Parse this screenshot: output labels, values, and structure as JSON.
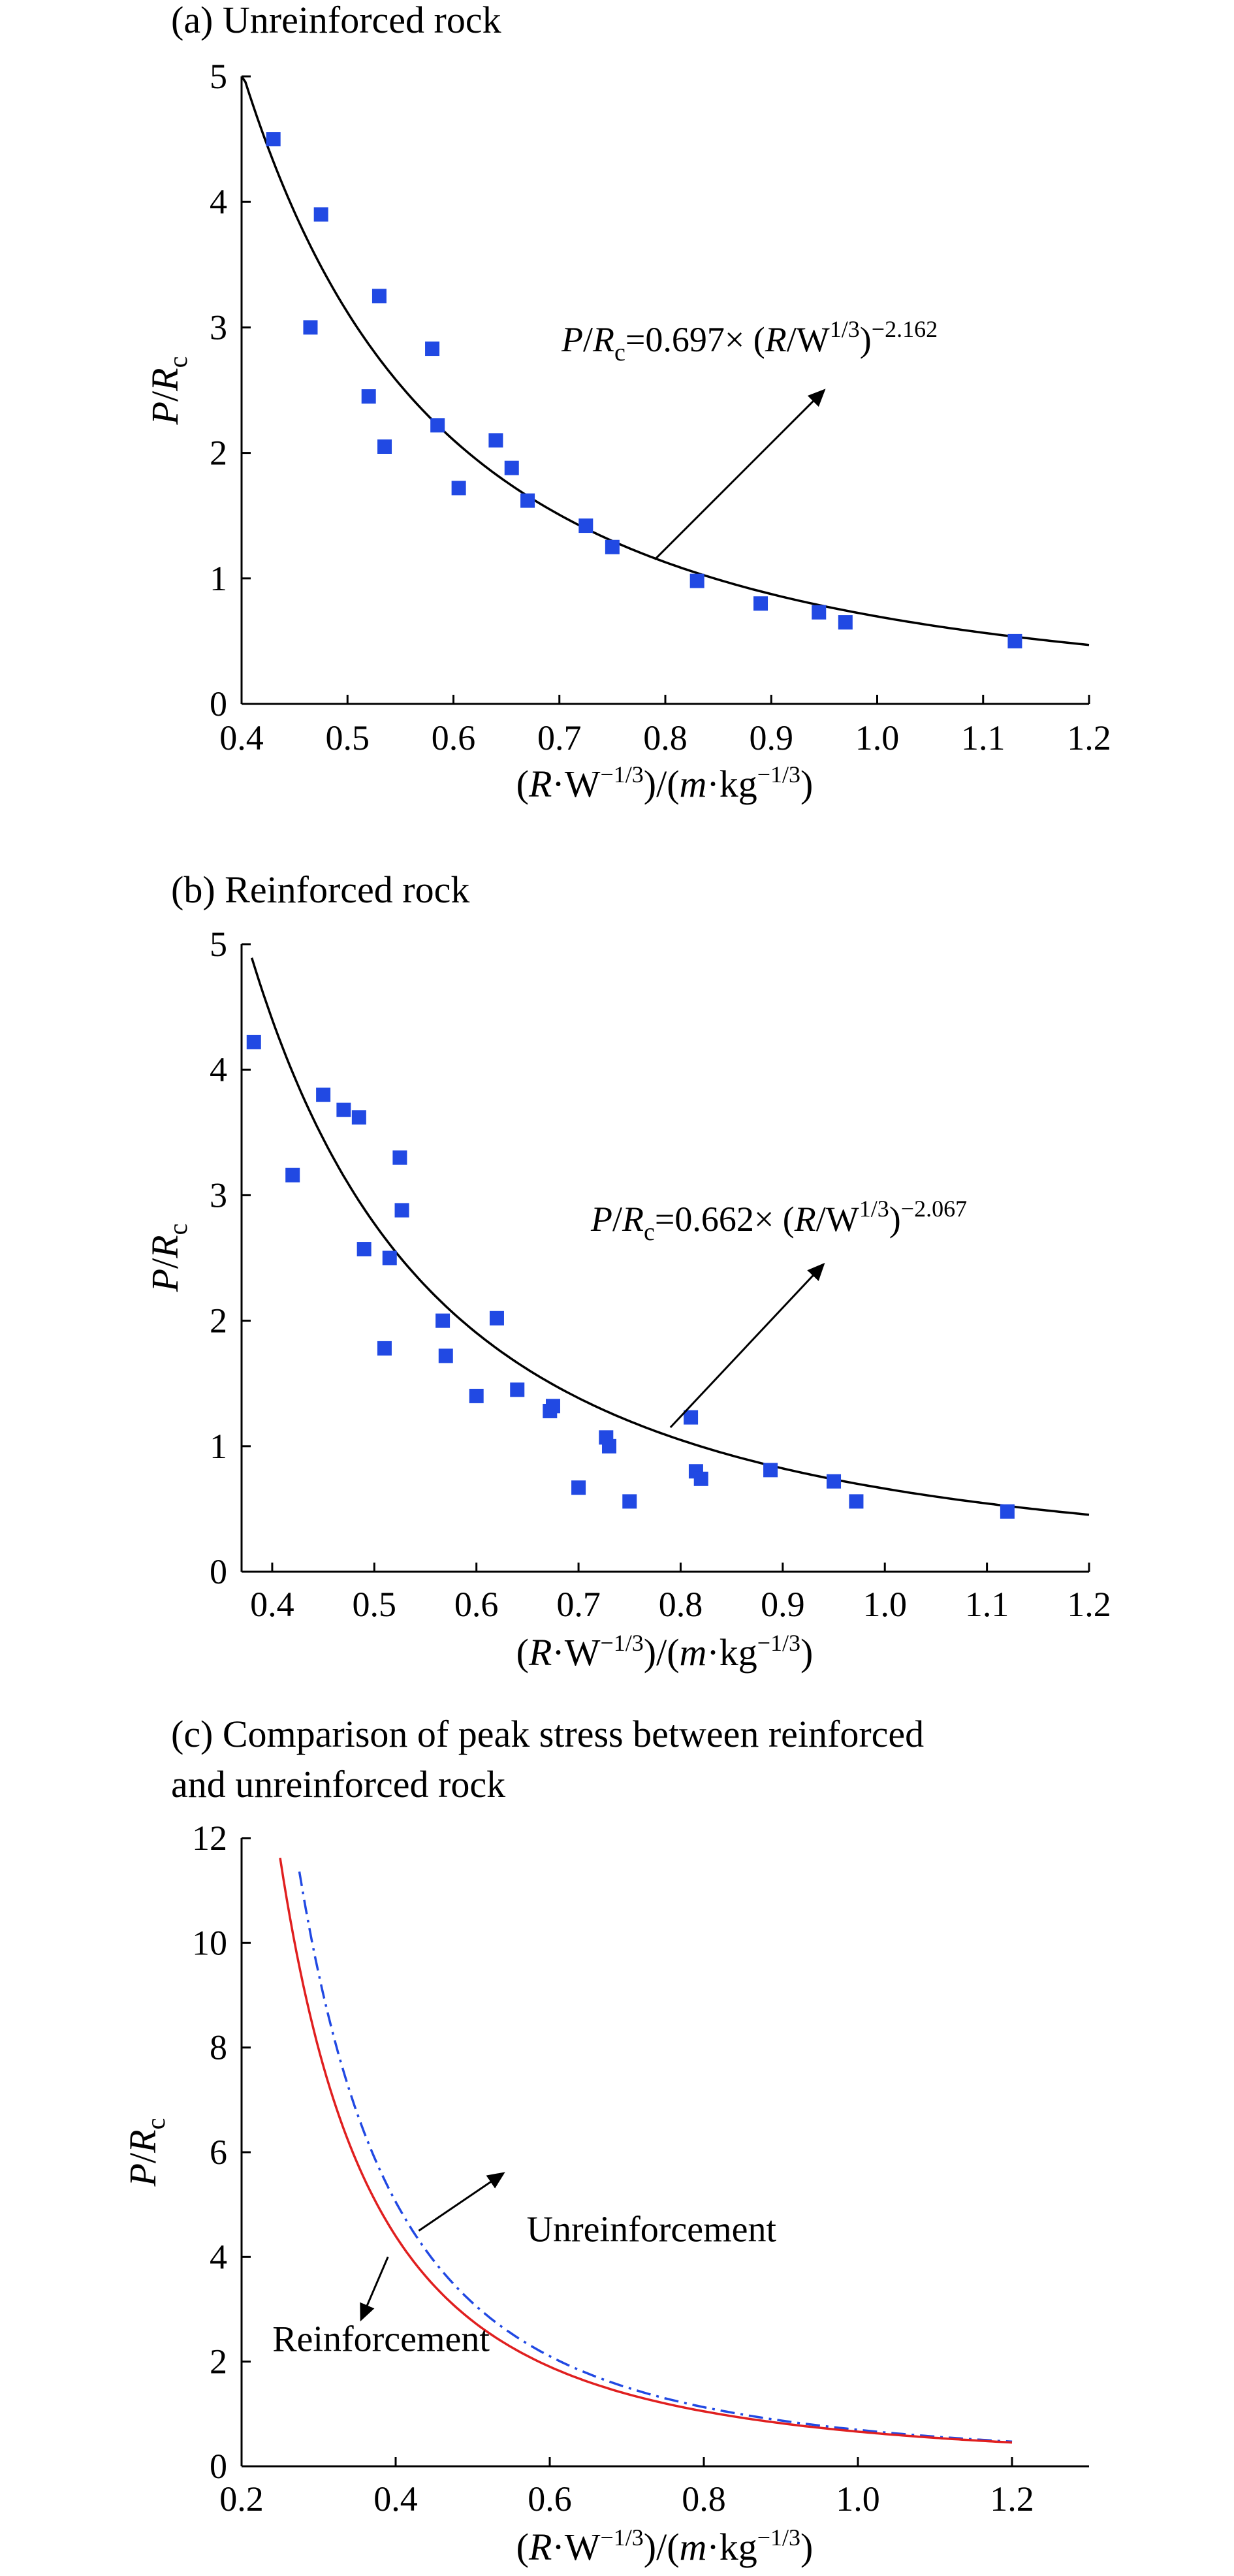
{
  "chart_data": [
    {
      "type": "scatter",
      "title": "(a) Unreinforced rock",
      "xlabel_parts": [
        "(",
        "R",
        "·W",
        "−1/3",
        ")/(",
        "m",
        "·kg",
        "−1/3",
        ")"
      ],
      "ylabel_parts": [
        "P",
        "/",
        "R",
        "c"
      ],
      "xlim": [
        0.4,
        1.2
      ],
      "ylim": [
        0,
        5
      ],
      "xticks": [
        "0.4",
        "0.5",
        "0.6",
        "0.7",
        "0.8",
        "0.9",
        "1.0",
        "1.1",
        "1.2"
      ],
      "yticks": [
        "0",
        "1",
        "2",
        "3",
        "4",
        "5"
      ],
      "series": [
        {
          "kind": "scatter",
          "color": "#2149e3",
          "points": [
            [
              0.43,
              4.5
            ],
            [
              0.465,
              3.0
            ],
            [
              0.475,
              3.9
            ],
            [
              0.52,
              2.45
            ],
            [
              0.53,
              3.25
            ],
            [
              0.535,
              2.05
            ],
            [
              0.58,
              2.83
            ],
            [
              0.585,
              2.22
            ],
            [
              0.605,
              1.72
            ],
            [
              0.64,
              2.1
            ],
            [
              0.655,
              1.88
            ],
            [
              0.67,
              1.62
            ],
            [
              0.725,
              1.42
            ],
            [
              0.75,
              1.25
            ],
            [
              0.83,
              0.98
            ],
            [
              0.89,
              0.8
            ],
            [
              0.945,
              0.73
            ],
            [
              0.97,
              0.65
            ],
            [
              1.13,
              0.5
            ]
          ]
        },
        {
          "kind": "fit",
          "color": "#000000",
          "coef": 0.697,
          "exponent": -2.162,
          "x_range": [
            0.4,
            1.2
          ]
        }
      ],
      "annotation": {
        "parts": [
          "P",
          "/",
          "R",
          "c",
          "=0.697× (",
          "R",
          "/W",
          "1/3",
          ")",
          "−2.162"
        ],
        "arrow_from": [
          0.79,
          1.15
        ],
        "arrow_to": [
          0.95,
          2.5
        ]
      }
    },
    {
      "type": "scatter",
      "title": "(b) Reinforced rock",
      "xlabel_parts": [
        "(",
        "R",
        "·W",
        "−1/3",
        ")/(",
        "m",
        "·kg",
        "−1/3",
        ")"
      ],
      "ylabel_parts": [
        "P",
        "/",
        "R",
        "c"
      ],
      "xlim": [
        0.37,
        1.2
      ],
      "ylim": [
        0,
        5
      ],
      "xticks": [
        "0.4",
        "0.5",
        "0.6",
        "0.7",
        "0.8",
        "0.9",
        "1.0",
        "1.1",
        "1.2"
      ],
      "yticks": [
        "0",
        "1",
        "2",
        "3",
        "4",
        "5"
      ],
      "series": [
        {
          "kind": "scatter",
          "color": "#2149e3",
          "points": [
            [
              0.382,
              4.22
            ],
            [
              0.42,
              3.16
            ],
            [
              0.45,
              3.8
            ],
            [
              0.47,
              3.68
            ],
            [
              0.485,
              3.62
            ],
            [
              0.49,
              2.57
            ],
            [
              0.51,
              1.78
            ],
            [
              0.515,
              2.5
            ],
            [
              0.525,
              3.3
            ],
            [
              0.527,
              2.88
            ],
            [
              0.567,
              2.0
            ],
            [
              0.57,
              1.72
            ],
            [
              0.6,
              1.4
            ],
            [
              0.62,
              2.02
            ],
            [
              0.64,
              1.45
            ],
            [
              0.672,
              1.28
            ],
            [
              0.675,
              1.32
            ],
            [
              0.7,
              0.67
            ],
            [
              0.727,
              1.07
            ],
            [
              0.73,
              1.0
            ],
            [
              0.75,
              0.56
            ],
            [
              0.81,
              1.23
            ],
            [
              0.815,
              0.8
            ],
            [
              0.82,
              0.74
            ],
            [
              0.888,
              0.81
            ],
            [
              0.95,
              0.72
            ],
            [
              0.972,
              0.56
            ],
            [
              1.12,
              0.48
            ]
          ]
        },
        {
          "kind": "fit",
          "color": "#000000",
          "coef": 0.662,
          "exponent": -2.067,
          "x_range": [
            0.38,
            1.2
          ]
        }
      ],
      "annotation": {
        "parts": [
          "P",
          "/",
          "R",
          "c",
          "=0.662× (",
          "R",
          "/W",
          "1/3",
          ")",
          "−2.067"
        ],
        "arrow_from": [
          0.79,
          1.15
        ],
        "arrow_to": [
          0.94,
          2.45
        ]
      }
    },
    {
      "type": "line",
      "title_lines": [
        "(c) Comparison of peak stress between reinforced",
        "and unreinforced rock"
      ],
      "xlabel_parts": [
        "(",
        "R",
        "·W",
        "−1/3",
        ")/(",
        "m",
        "·kg",
        "−1/3",
        ")"
      ],
      "ylabel_parts": [
        "P",
        "/",
        "R",
        "c"
      ],
      "xlim": [
        0.2,
        1.3
      ],
      "ylim": [
        0,
        12
      ],
      "xticks": [
        "0.2",
        "0.4",
        "0.6",
        "0.8",
        "1.0",
        "1.2"
      ],
      "yticks": [
        "0",
        "2",
        "4",
        "6",
        "8",
        "10",
        "12"
      ],
      "series": [
        {
          "name": "Unreinforcement",
          "kind": "fit",
          "style": "dashdot",
          "color": "#2149e3",
          "coef": 0.697,
          "exponent": -2.162,
          "x_range": [
            0.275,
            1.2
          ]
        },
        {
          "name": "Reinforcement",
          "kind": "fit",
          "style": "solid",
          "color": "#e01f1f",
          "coef": 0.662,
          "exponent": -2.067,
          "x_range": [
            0.25,
            1.2
          ]
        }
      ],
      "labels": [
        {
          "text": "Unreinforcement",
          "text_at": [
            0.57,
            4.3
          ],
          "arrow_from": [
            0.43,
            4.5
          ],
          "arrow_to": [
            0.54,
            5.6
          ]
        },
        {
          "text": "Reinforcement",
          "text_at": [
            0.24,
            2.2
          ],
          "arrow_from": [
            0.39,
            4.0
          ],
          "arrow_to": [
            0.355,
            2.8
          ]
        }
      ]
    }
  ]
}
